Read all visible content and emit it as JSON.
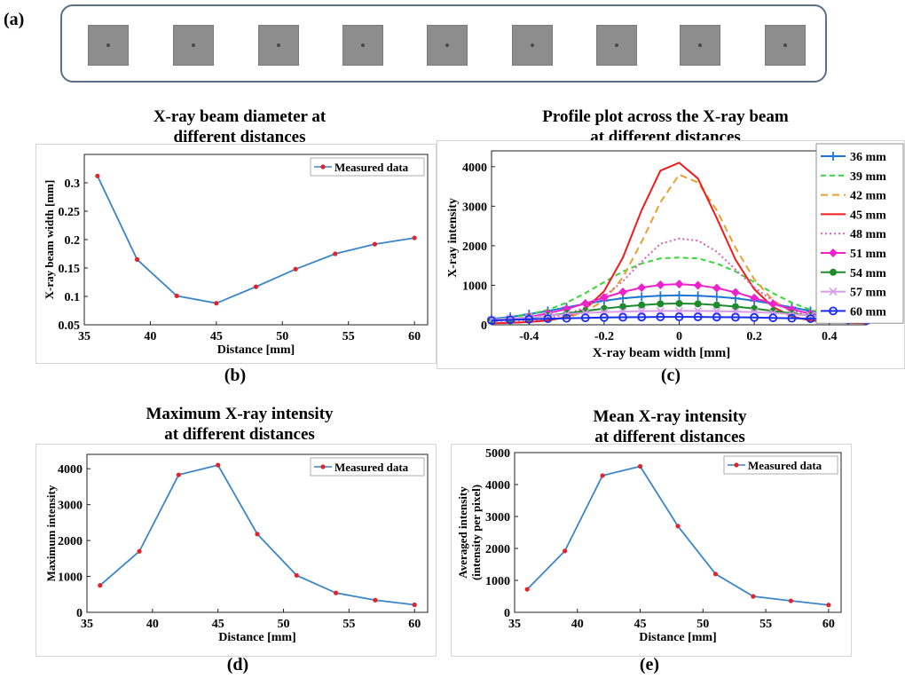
{
  "figure": {
    "panel_a_label": "(a)",
    "sample_count": 9,
    "sublabels": [
      "(b)",
      "(c)",
      "(d)",
      "(e)"
    ]
  },
  "chart_data": [
    {
      "id": "b",
      "type": "line",
      "title": "X-ray beam diameter at different distances",
      "title_lines": [
        "X-ray beam diameter at",
        "different distances"
      ],
      "xlabel": "Distance [mm]",
      "ylabel": "X-ray beam width [mm]",
      "xlim": [
        35,
        61
      ],
      "ylim": [
        0.05,
        0.35
      ],
      "xticks": [
        35,
        40,
        45,
        50,
        55,
        60
      ],
      "yticks": [
        0.05,
        0.1,
        0.15,
        0.2,
        0.25,
        0.3
      ],
      "ytick_labels": [
        "0.05",
        "0.1",
        "0.15",
        "0.2",
        "0.25",
        "0.3"
      ],
      "legend": "top-right",
      "series": [
        {
          "name": "Measured data",
          "color": "#3a86c8",
          "marker_color": "#e0242c",
          "x": [
            36,
            39,
            42,
            45,
            48,
            51,
            54,
            57,
            60
          ],
          "y": [
            0.312,
            0.165,
            0.101,
            0.088,
            0.117,
            0.148,
            0.175,
            0.192,
            0.203
          ]
        }
      ]
    },
    {
      "id": "c",
      "type": "line",
      "title": "Profile plot across the X-ray beam at different distances",
      "title_lines": [
        "Profile plot across the X-ray beam",
        "at different distances"
      ],
      "xlabel": "X-ray beam width [mm]",
      "ylabel": "X-ray intensity",
      "xlim": [
        -0.5,
        0.5
      ],
      "ylim": [
        0,
        4400
      ],
      "xticks": [
        -0.4,
        -0.2,
        0,
        0.2,
        0.4
      ],
      "xtick_labels": [
        "-0.4",
        "-0.2",
        "0",
        "0.2",
        "0.4"
      ],
      "yticks": [
        0,
        1000,
        2000,
        3000,
        4000
      ],
      "legend": "right",
      "x": [
        -0.5,
        -0.45,
        -0.4,
        -0.35,
        -0.3,
        -0.25,
        -0.2,
        -0.15,
        -0.1,
        -0.05,
        0,
        0.05,
        0.1,
        0.15,
        0.2,
        0.25,
        0.3,
        0.35,
        0.4,
        0.45,
        0.5
      ],
      "series": [
        {
          "name": "36 mm",
          "color": "#1f77d4",
          "dash": "",
          "marker": "plus",
          "y": [
            150,
            200,
            270,
            350,
            440,
            530,
            610,
            670,
            710,
            735,
            745,
            735,
            710,
            670,
            610,
            530,
            440,
            350,
            270,
            200,
            150
          ]
        },
        {
          "name": "39 mm",
          "color": "#39d639",
          "dash": "6,4",
          "marker": "none",
          "y": [
            130,
            180,
            260,
            380,
            560,
            800,
            1080,
            1350,
            1550,
            1680,
            1700,
            1680,
            1550,
            1350,
            1080,
            800,
            560,
            380,
            260,
            180,
            130
          ]
        },
        {
          "name": "42 mm",
          "color": "#e8a030",
          "dash": "8,5",
          "marker": "none",
          "y": [
            40,
            50,
            70,
            110,
            180,
            330,
            620,
            1200,
            2100,
            3100,
            3800,
            3600,
            2900,
            1950,
            1150,
            620,
            320,
            160,
            80,
            50,
            40
          ]
        },
        {
          "name": "45 mm",
          "color": "#ee1c1c",
          "dash": "",
          "marker": "none",
          "y": [
            40,
            50,
            70,
            110,
            200,
            400,
            850,
            1700,
            2900,
            3900,
            4100,
            3700,
            2700,
            1650,
            900,
            450,
            210,
            110,
            70,
            50,
            40
          ]
        },
        {
          "name": "48 mm",
          "color": "#e060b8",
          "dash": "2,3",
          "marker": "none",
          "y": [
            60,
            80,
            110,
            170,
            270,
            440,
            720,
            1100,
            1600,
            2050,
            2180,
            2130,
            1850,
            1400,
            950,
            600,
            360,
            210,
            130,
            90,
            60
          ]
        },
        {
          "name": "51 mm",
          "color": "#ee22cc",
          "dash": "",
          "marker": "diamond",
          "y": [
            100,
            140,
            200,
            290,
            400,
            540,
            690,
            830,
            940,
            1010,
            1030,
            1000,
            930,
            820,
            680,
            530,
            390,
            280,
            190,
            130,
            100
          ]
        },
        {
          "name": "54 mm",
          "color": "#1e8c2c",
          "dash": "",
          "marker": "circle",
          "y": [
            110,
            140,
            180,
            230,
            290,
            350,
            410,
            460,
            500,
            530,
            540,
            530,
            500,
            460,
            410,
            350,
            290,
            230,
            180,
            140,
            110
          ]
        },
        {
          "name": "57 mm",
          "color": "#d89ce8",
          "dash": "",
          "marker": "cross",
          "y": [
            130,
            160,
            190,
            230,
            270,
            300,
            320,
            335,
            345,
            350,
            350,
            350,
            345,
            335,
            320,
            300,
            270,
            230,
            190,
            160,
            130
          ]
        },
        {
          "name": "60 mm",
          "color": "#1a2cf0",
          "dash": "",
          "marker": "ring",
          "y": [
            110,
            125,
            140,
            155,
            165,
            175,
            185,
            190,
            195,
            200,
            200,
            200,
            195,
            190,
            185,
            175,
            165,
            155,
            140,
            125,
            110
          ]
        }
      ]
    },
    {
      "id": "d",
      "type": "line",
      "title": "Maximum X-ray intensity at different distances",
      "title_lines": [
        "Maximum X-ray intensity",
        "at different distances"
      ],
      "xlabel": "Distance [mm]",
      "ylabel": "Maximum intensity",
      "xlim": [
        35,
        61
      ],
      "ylim": [
        0,
        4400
      ],
      "xticks": [
        35,
        40,
        45,
        50,
        55,
        60
      ],
      "yticks": [
        0,
        1000,
        2000,
        3000,
        4000
      ],
      "legend": "top-right",
      "series": [
        {
          "name": "Measured data",
          "color": "#3a86c8",
          "marker_color": "#e0242c",
          "x": [
            36,
            39,
            42,
            45,
            48,
            51,
            54,
            57,
            60
          ],
          "y": [
            750,
            1700,
            3830,
            4100,
            2180,
            1030,
            540,
            340,
            210
          ]
        }
      ]
    },
    {
      "id": "e",
      "type": "line",
      "title": "Mean X-ray intensity at different distances",
      "title_lines": [
        "Mean X-ray intensity",
        "at different distances"
      ],
      "xlabel": "Distance [mm]",
      "ylabel": "Averaged intensity (intensity per pixel)",
      "ylabel_lines": [
        "Averaged intensity",
        "(intensity per pixel)"
      ],
      "xlim": [
        35,
        61
      ],
      "ylim": [
        0,
        5000
      ],
      "xticks": [
        35,
        40,
        45,
        50,
        55,
        60
      ],
      "yticks": [
        0,
        1000,
        2000,
        3000,
        4000,
        5000
      ],
      "legend": "top-right",
      "series": [
        {
          "name": "Measured data",
          "color": "#3a86c8",
          "marker_color": "#e0242c",
          "x": [
            36,
            39,
            42,
            45,
            48,
            51,
            54,
            57,
            60
          ],
          "y": [
            720,
            1920,
            4280,
            4570,
            2700,
            1200,
            500,
            360,
            230
          ]
        }
      ]
    }
  ]
}
